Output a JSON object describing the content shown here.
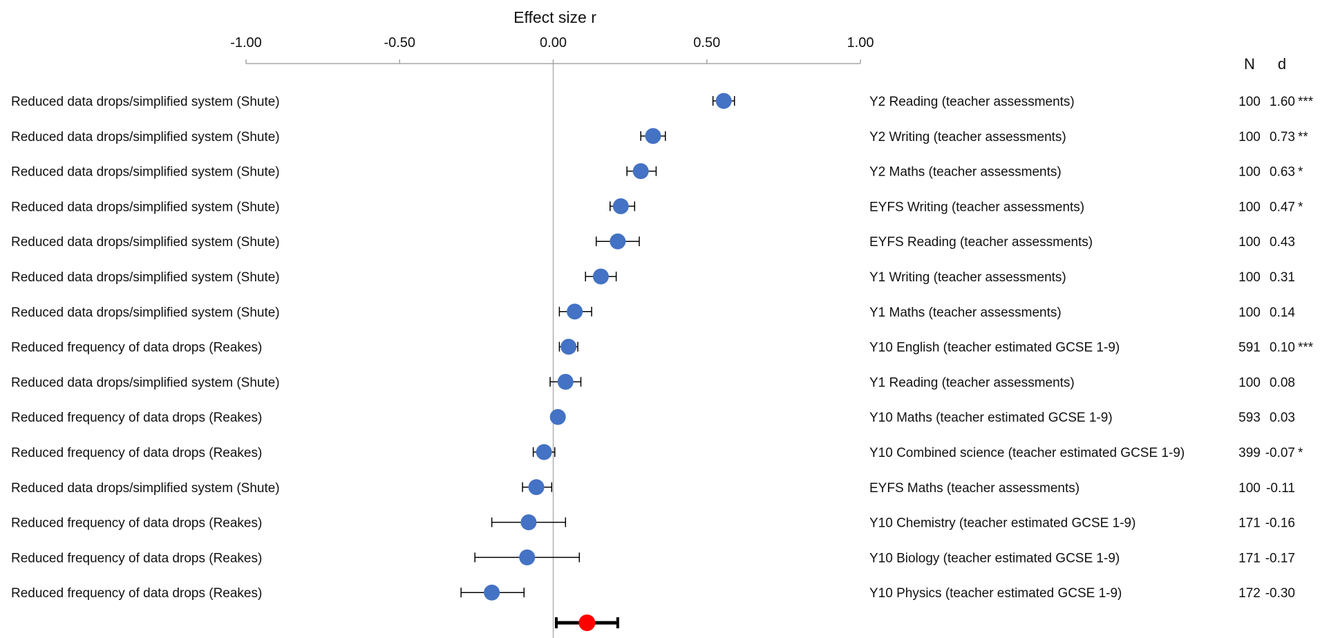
{
  "chart_data": {
    "type": "forest",
    "title": "",
    "xlabel": "Effect size r",
    "xlim": [
      -1.0,
      1.0
    ],
    "xticks": [
      -1.0,
      -0.5,
      0.0,
      0.5,
      1.0
    ],
    "xtick_labels": [
      "-1.00",
      "-0.50",
      "0.00",
      "0.50",
      "1.00"
    ],
    "column_headers": {
      "n": "N",
      "d": "d"
    },
    "colors": {
      "study_point": "#4472C4",
      "summary_point": "#FF0000",
      "axis": "#A6A6A6",
      "error_bar": "#000000"
    },
    "rows": [
      {
        "intervention": "Reduced data drops/simplified system (Shute)",
        "outcome": "Y2 Reading (teacher assessments)",
        "n": "100",
        "d": "1.60",
        "sig": "***",
        "r": 0.555,
        "lo": 0.52,
        "hi": 0.59
      },
      {
        "intervention": "Reduced data drops/simplified system (Shute)",
        "outcome": "Y2 Writing (teacher assessments)",
        "n": "100",
        "d": "0.73",
        "sig": "**",
        "r": 0.325,
        "lo": 0.285,
        "hi": 0.365
      },
      {
        "intervention": "Reduced data drops/simplified system (Shute)",
        "outcome": "Y2 Maths (teacher assessments)",
        "n": "100",
        "d": "0.63",
        "sig": "*",
        "r": 0.285,
        "lo": 0.24,
        "hi": 0.335
      },
      {
        "intervention": "Reduced data drops/simplified system (Shute)",
        "outcome": "EYFS Writing (teacher assessments)",
        "n": "100",
        "d": "0.47",
        "sig": "*",
        "r": 0.22,
        "lo": 0.185,
        "hi": 0.265
      },
      {
        "intervention": "Reduced data drops/simplified system (Shute)",
        "outcome": "EYFS Reading (teacher assessments)",
        "n": "100",
        "d": "0.43",
        "sig": "",
        "r": 0.21,
        "lo": 0.14,
        "hi": 0.28
      },
      {
        "intervention": "Reduced data drops/simplified system (Shute)",
        "outcome": "Y1 Writing (teacher assessments)",
        "n": "100",
        "d": "0.31",
        "sig": "",
        "r": 0.155,
        "lo": 0.105,
        "hi": 0.205
      },
      {
        "intervention": "Reduced data drops/simplified system (Shute)",
        "outcome": "Y1 Maths (teacher assessments)",
        "n": "100",
        "d": "0.14",
        "sig": "",
        "r": 0.07,
        "lo": 0.02,
        "hi": 0.125
      },
      {
        "intervention": "Reduced frequency of data drops (Reakes)",
        "outcome": "Y10 English (teacher estimated GCSE 1-9)",
        "n": "591",
        "d": "0.10",
        "sig": "***",
        "r": 0.05,
        "lo": 0.02,
        "hi": 0.08
      },
      {
        "intervention": "Reduced data drops/simplified system (Shute)",
        "outcome": "Y1 Reading (teacher assessments)",
        "n": "100",
        "d": "0.08",
        "sig": "",
        "r": 0.04,
        "lo": -0.01,
        "hi": 0.09
      },
      {
        "intervention": "Reduced frequency of data drops (Reakes)",
        "outcome": "Y10 Maths (teacher estimated GCSE 1-9)",
        "n": "593",
        "d": "0.03",
        "sig": "",
        "r": 0.015,
        "lo": 0.005,
        "hi": 0.025
      },
      {
        "intervention": "Reduced frequency of data drops (Reakes)",
        "outcome": "Y10 Combined science (teacher estimated GCSE 1-9)",
        "n": "399",
        "d": "-0.07",
        "sig": "*",
        "r": -0.03,
        "lo": -0.065,
        "hi": 0.005
      },
      {
        "intervention": "Reduced data drops/simplified system (Shute)",
        "outcome": "EYFS Maths (teacher assessments)",
        "n": "100",
        "d": "-0.11",
        "sig": "",
        "r": -0.055,
        "lo": -0.1,
        "hi": -0.005
      },
      {
        "intervention": "Reduced frequency of data drops (Reakes)",
        "outcome": "Y10 Chemistry (teacher estimated GCSE 1-9)",
        "n": "171",
        "d": "-0.16",
        "sig": "",
        "r": -0.08,
        "lo": -0.2,
        "hi": 0.04
      },
      {
        "intervention": "Reduced frequency of data drops (Reakes)",
        "outcome": "Y10 Biology (teacher estimated GCSE 1-9)",
        "n": "171",
        "d": "-0.17",
        "sig": "",
        "r": -0.085,
        "lo": -0.255,
        "hi": 0.085
      },
      {
        "intervention": "Reduced frequency of data drops (Reakes)",
        "outcome": "Y10 Physics (teacher estimated GCSE 1-9)",
        "n": "172",
        "d": "-0.30",
        "sig": "",
        "r": -0.2,
        "lo": -0.3,
        "hi": -0.095
      }
    ],
    "summary": {
      "r": 0.11,
      "lo": 0.01,
      "hi": 0.21
    }
  }
}
